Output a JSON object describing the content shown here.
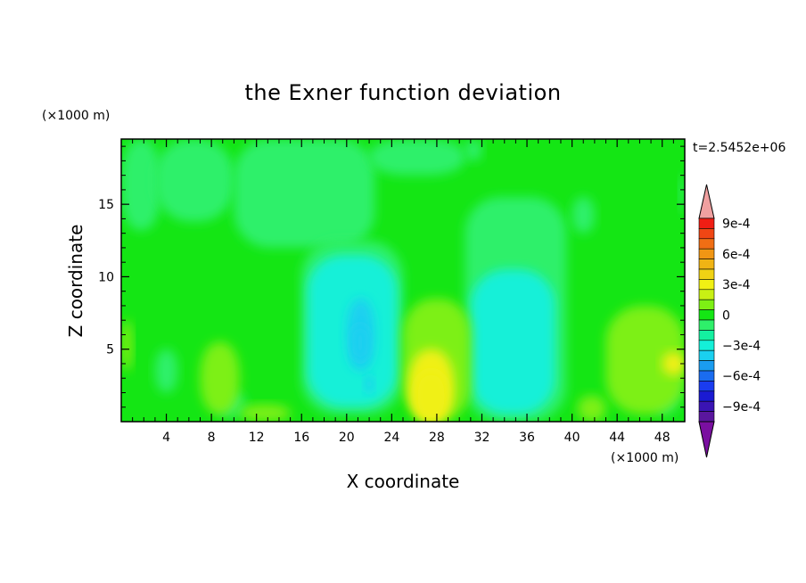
{
  "chart_data": {
    "type": "heatmap",
    "title": "the Exner function deviation",
    "xlabel": "X coordinate",
    "ylabel": "Z coordinate",
    "x_unit": "(×1000 m)",
    "y_unit": "(×1000 m)",
    "time_label": "t=2.5452e+06",
    "xlim": [
      0,
      50
    ],
    "ylim": [
      0,
      19.5
    ],
    "x_ticks": [
      4,
      8,
      12,
      16,
      20,
      24,
      28,
      32,
      36,
      40,
      44,
      48
    ],
    "y_ticks": [
      5,
      10,
      15
    ],
    "colorbar": {
      "levels": [
        -0.0011,
        -0.001,
        -0.0009,
        -0.0008,
        -0.0007,
        -0.0006,
        -0.0005,
        -0.0004,
        -0.0003,
        -0.0002,
        -0.0001,
        0,
        0.0001,
        0.0002,
        0.0003,
        0.0004,
        0.0005,
        0.0006,
        0.0007,
        0.0008,
        0.0009,
        0.001
      ],
      "colors": [
        "#7a0fa0",
        "#5a169e",
        "#3a14b4",
        "#1a1ad2",
        "#1a3cf0",
        "#1a6cf0",
        "#1a9cf0",
        "#1ad0f0",
        "#14f0d8",
        "#14f0a0",
        "#2ef06a",
        "#14e614",
        "#7df014",
        "#c8f014",
        "#f0f014",
        "#f0d214",
        "#f0b414",
        "#f09614",
        "#f06e14",
        "#f04614",
        "#f01e14",
        "#f0a0a0"
      ],
      "tick_labels": [
        {
          "label": "9e-4",
          "value": 0.0009
        },
        {
          "label": "6e-4",
          "value": 0.0006
        },
        {
          "label": "3e-4",
          "value": 0.0003
        },
        {
          "label": "0",
          "value": 0
        },
        {
          "label": "−3e-4",
          "value": -0.0003
        },
        {
          "label": "−6e-4",
          "value": -0.0006
        },
        {
          "label": "−9e-4",
          "value": -0.0009
        }
      ]
    },
    "features": [
      {
        "x": 0,
        "z": 0,
        "w": 50,
        "h": 19.5,
        "value": 5e-05
      },
      {
        "x": 0,
        "z": 13.2,
        "w": 3.5,
        "h": 6.3,
        "value": -0.00015
      },
      {
        "x": 3,
        "z": 13.8,
        "w": 7,
        "h": 5.7,
        "value": -0.00015
      },
      {
        "x": 10,
        "z": 12,
        "w": 12.5,
        "h": 7.5,
        "value": -0.00015
      },
      {
        "x": 22,
        "z": 17,
        "w": 8.5,
        "h": 2.5,
        "value": -0.00015
      },
      {
        "x": 30.5,
        "z": 18,
        "w": 1.5,
        "h": 1.5,
        "value": -0.00015
      },
      {
        "x": 16,
        "z": 0.5,
        "w": 9,
        "h": 12,
        "value": -0.00015
      },
      {
        "x": 30.5,
        "z": 0,
        "w": 9,
        "h": 15.5,
        "value": -0.00015
      },
      {
        "x": 40,
        "z": 13,
        "w": 2,
        "h": 2.5,
        "value": -0.00015
      },
      {
        "x": 49.5,
        "z": 14.5,
        "w": 0.5,
        "h": 2.5,
        "value": -0.00015
      },
      {
        "x": 3,
        "z": 2,
        "w": 2,
        "h": 3,
        "value": -0.00015
      },
      {
        "x": 8.5,
        "z": 0.3,
        "w": 2.5,
        "h": 1.8,
        "value": -0.00015
      },
      {
        "x": 47,
        "z": 0.5,
        "w": 2.5,
        "h": 3.5,
        "value": -0.00015
      },
      {
        "x": 16.5,
        "z": 1,
        "w": 8,
        "h": 10.5,
        "value": -0.00025
      },
      {
        "x": 31,
        "z": 0.5,
        "w": 7.5,
        "h": 10,
        "value": -0.00025
      },
      {
        "x": 20,
        "z": 3.5,
        "w": 2.5,
        "h": 5,
        "value": -0.00035
      },
      {
        "x": 20.5,
        "z": 4.2,
        "w": 1.4,
        "h": 2.5,
        "value": -0.00045
      },
      {
        "x": 21.6,
        "z": 2,
        "w": 0.8,
        "h": 1.2,
        "value": -0.00045
      },
      {
        "x": 0,
        "z": 3.5,
        "w": 1,
        "h": 3.5,
        "value": 0.00015
      },
      {
        "x": 7,
        "z": 0.5,
        "w": 3.5,
        "h": 5,
        "value": 0.00015
      },
      {
        "x": 10.5,
        "z": 0,
        "w": 4.5,
        "h": 1.2,
        "value": 0.00015
      },
      {
        "x": 25,
        "z": 0,
        "w": 6,
        "h": 8.5,
        "value": 0.00015
      },
      {
        "x": 40.5,
        "z": 0,
        "w": 2.5,
        "h": 1.8,
        "value": 0.00015
      },
      {
        "x": 43,
        "z": 0.5,
        "w": 7,
        "h": 7.5,
        "value": 0.00015
      },
      {
        "x": 25.5,
        "z": 0,
        "w": 4,
        "h": 5,
        "value": 0.00025
      },
      {
        "x": 48,
        "z": 3.2,
        "w": 2,
        "h": 1.6,
        "value": 0.00025
      },
      {
        "x": 26,
        "z": 0,
        "w": 3,
        "h": 3.5,
        "value": 0.00035
      }
    ]
  }
}
